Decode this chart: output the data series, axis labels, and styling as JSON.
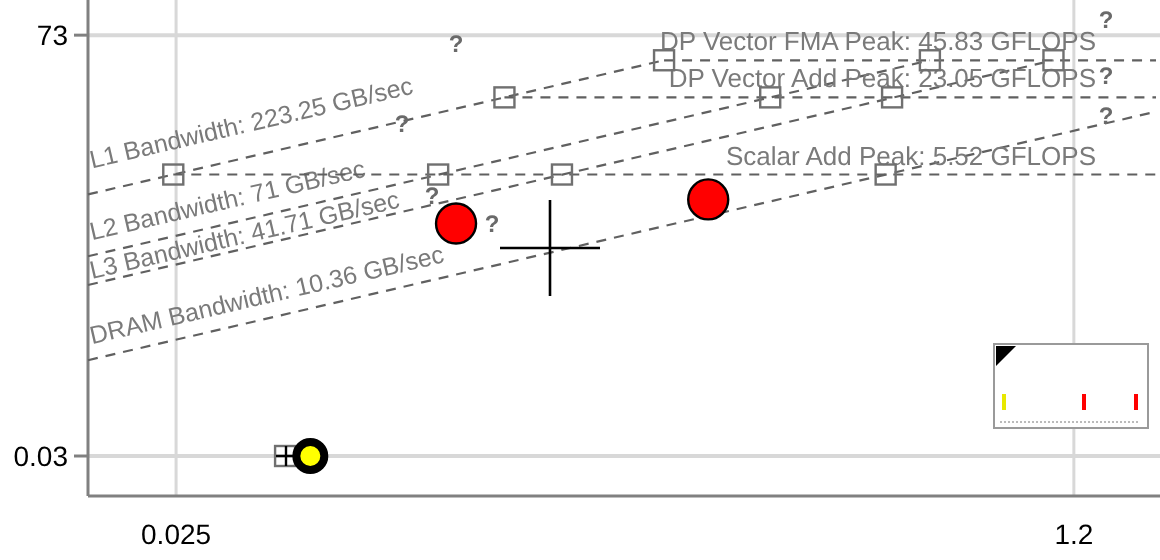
{
  "chart_data": {
    "type": "line",
    "log": "xy",
    "grid": true,
    "xlim": [
      0.0171,
      1.71
    ],
    "ylim": [
      0.0143,
      140
    ],
    "xticks": [
      0.025,
      1.2
    ],
    "yticks": [
      0.03,
      73
    ],
    "series": [
      {
        "name": "L1 Bandwidth: 223.25 GB/sec",
        "color": "#606060",
        "line_style": "dashed",
        "x": [
          0.0171,
          0.205
        ],
        "values": [
          3.82,
          45.83
        ]
      },
      {
        "name": "L2 Bandwidth: 71 GB/sec",
        "color": "#606060",
        "line_style": "dashed",
        "x": [
          0.0171,
          0.645
        ],
        "values": [
          1.214,
          45.83
        ]
      },
      {
        "name": "L3 Bandwidth: 41.71 GB/sec",
        "color": "#606060",
        "line_style": "dashed",
        "x": [
          0.0171,
          1.099
        ],
        "values": [
          0.713,
          45.83
        ]
      },
      {
        "name": "DRAM Bandwidth: 10.36 GB/sec",
        "color": "#606060",
        "line_style": "dashed",
        "x": [
          0.0171,
          1.71
        ],
        "values": [
          0.177,
          17.7
        ]
      },
      {
        "name": "DP Vector FMA Peak: 45.83 GFLOPS",
        "color": "#606060",
        "line_style": "dashed",
        "x": [
          0.205,
          1.71
        ],
        "values": [
          45.83,
          45.83
        ]
      },
      {
        "name": "DP Vector Add Peak: 23.05 GFLOPS",
        "color": "#606060",
        "line_style": "dashed",
        "x": [
          0.103,
          1.71
        ],
        "values": [
          23.05,
          23.05
        ]
      },
      {
        "name": "Scalar Add Peak: 5.52 GFLOPS",
        "color": "#606060",
        "line_style": "dashed",
        "x": [
          0.0247,
          1.71
        ],
        "values": [
          5.52,
          5.52
        ]
      },
      {
        "type": "scatter",
        "color": "#707070",
        "marker": "square",
        "x": [
          0.0247,
          0.0774,
          0.132,
          0.533,
          0.103,
          0.324,
          0.548,
          0.205,
          0.645,
          1.099,
          0.04
        ],
        "values": [
          5.52,
          5.52,
          5.52,
          5.52,
          23.05,
          23.05,
          23.05,
          45.83,
          45.83,
          45.83,
          0.03
        ]
      },
      {
        "type": "scatter",
        "color": "#ff0000",
        "marker": "circle",
        "x": [
          0.0836,
          0.248
        ],
        "values": [
          2.23,
          3.48
        ]
      },
      {
        "type": "scatter",
        "color": "#ffff00",
        "marker": "circle",
        "x": [
          0.0446
        ],
        "values": [
          0.03
        ]
      }
    ],
    "annotations": [
      "?",
      "?",
      "?",
      {
        "text": "?",
        "x": 0.0836,
        "y": 2.23
      },
      "?",
      "?",
      "?"
    ]
  }
}
